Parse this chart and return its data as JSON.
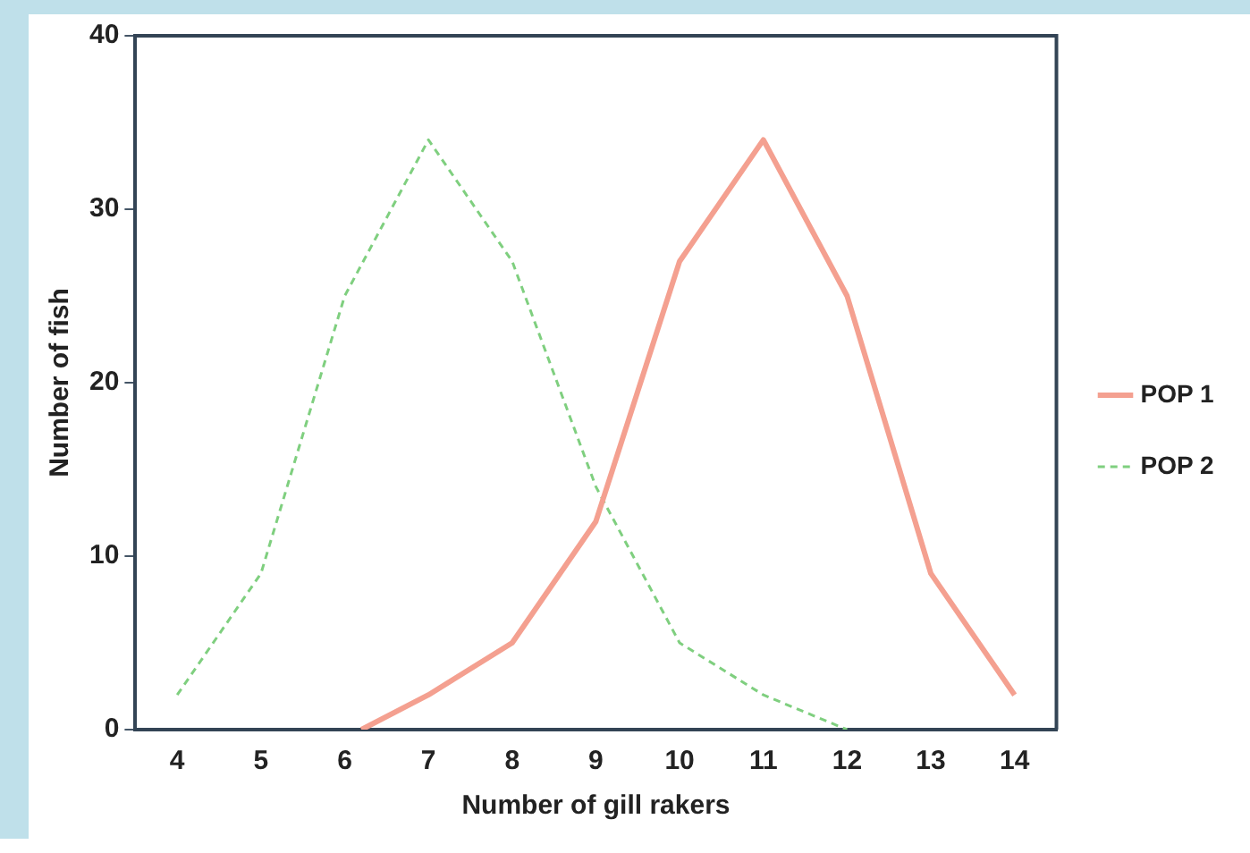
{
  "chart_data": {
    "type": "line",
    "xlabel": "Number of gill rakers",
    "ylabel": "Number of fish",
    "xlim": [
      3.5,
      14.5
    ],
    "xticks": [
      4,
      5,
      6,
      7,
      8,
      9,
      10,
      11,
      12,
      13,
      14
    ],
    "ylim": [
      0,
      40
    ],
    "yticks": [
      0,
      10,
      20,
      30,
      40
    ],
    "grid": false,
    "legend": "right",
    "marker": "none",
    "series": [
      {
        "name": "POP 1",
        "color": "#f4a090",
        "line_style": "solid",
        "x": [
          6.2,
          7,
          8,
          9,
          10,
          11,
          12,
          13,
          14
        ],
        "values": [
          0,
          2,
          5,
          12,
          27,
          34,
          25,
          9,
          2
        ]
      },
      {
        "name": "POP 2",
        "color": "#7fcf7f",
        "line_style": "dashed",
        "x": [
          4,
          5,
          6,
          7,
          8,
          9,
          10,
          11,
          12
        ],
        "values": [
          2,
          9,
          25,
          34,
          27,
          14,
          5,
          2,
          0
        ]
      }
    ]
  }
}
